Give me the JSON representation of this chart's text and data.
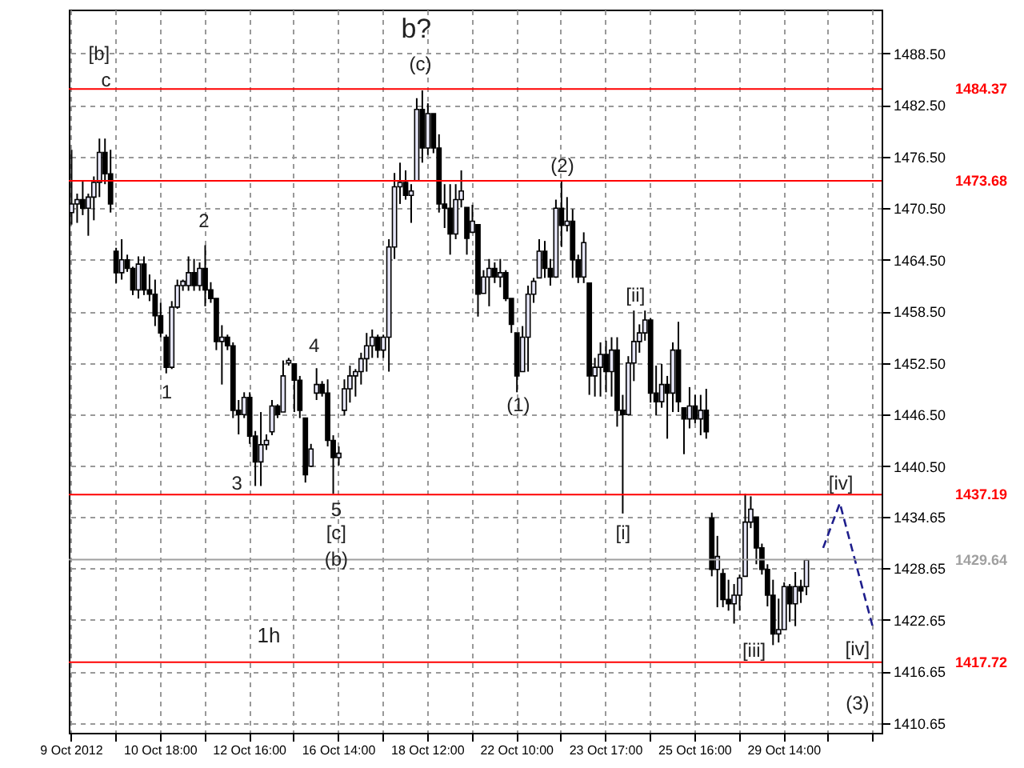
{
  "chart_data": {
    "type": "candlestick",
    "color": "#000000",
    "grid": true,
    "categories": [
      "9 Oct 2012",
      null,
      null,
      null,
      null,
      null,
      null,
      null,
      null,
      null,
      null,
      null,
      null,
      null,
      null,
      null,
      "10 Oct 18:00",
      null,
      null,
      null,
      null,
      null,
      null,
      null,
      null,
      null,
      null,
      null,
      null,
      null,
      null,
      null,
      "12 Oct 16:00",
      null,
      null,
      null,
      null,
      null,
      null,
      null,
      null,
      null,
      null,
      null,
      null,
      null,
      null,
      null,
      "16 Oct 14:00",
      null,
      null,
      null,
      null,
      null,
      null,
      null,
      null,
      null,
      null,
      null,
      null,
      null,
      null,
      null,
      "18 Oct 12:00",
      null,
      null,
      null,
      null,
      null,
      null,
      null,
      null,
      null,
      null,
      null,
      null,
      null,
      null,
      null,
      "22 Oct 10:00",
      null,
      null,
      null,
      null,
      null,
      null,
      null,
      null,
      null,
      null,
      null,
      null,
      null,
      null,
      null,
      "23 Oct 17:00",
      null,
      null,
      null,
      null,
      null,
      null,
      null,
      null,
      null,
      null,
      null,
      null,
      null,
      null,
      null,
      "25 Oct 16:00",
      null,
      null,
      null,
      null,
      null,
      null,
      null,
      null,
      null,
      null,
      null,
      null,
      null,
      null,
      null,
      "29 Oct 14:00",
      null,
      null,
      null,
      null,
      null,
      null,
      null,
      null,
      null,
      null,
      null,
      null,
      null,
      null,
      null,
      null,
      null
    ],
    "ohlc": [
      [
        1470.0,
        1477.3,
        1468.6,
        1471.0
      ],
      [
        1471.0,
        1472.2,
        1468.8,
        1471.5
      ],
      [
        1471.5,
        1473.7,
        1469.7,
        1470.5
      ],
      [
        1470.5,
        1472.2,
        1467.3,
        1471.8
      ],
      [
        1471.8,
        1474.2,
        1469.1,
        1473.5
      ],
      [
        1473.5,
        1478.6,
        1471.8,
        1477.0
      ],
      [
        1477.0,
        1478.6,
        1473.3,
        1474.5
      ],
      [
        1474.5,
        1477.3,
        1470.0,
        1471.0
      ],
      [
        1465.5,
        1465.9,
        1461.8,
        1463.0
      ],
      [
        1463.0,
        1466.9,
        1462.2,
        1464.5
      ],
      [
        1464.5,
        1465.1,
        1463.1,
        1463.5
      ],
      [
        1463.5,
        1463.7,
        1460.4,
        1461.0
      ],
      [
        1461.0,
        1464.9,
        1460.0,
        1464.0
      ],
      [
        1464.0,
        1464.9,
        1460.4,
        1461.0
      ],
      [
        1461.0,
        1462.8,
        1459.7,
        1460.5
      ],
      [
        1460.5,
        1462.2,
        1456.8,
        1458.0
      ],
      [
        1458.0,
        1459.5,
        1455.5,
        1456.0
      ],
      [
        1455.5,
        1455.8,
        1451.3,
        1452.0
      ],
      [
        1452.0,
        1459.7,
        1451.8,
        1459.0
      ],
      [
        1459.0,
        1462.2,
        1458.8,
        1461.5
      ],
      [
        1461.5,
        1462.2,
        1460.9,
        1462.0
      ],
      [
        1461.5,
        1464.9,
        1460.9,
        1463.0
      ],
      [
        1463.0,
        1464.6,
        1460.9,
        1461.5
      ],
      [
        1461.5,
        1464.2,
        1460.9,
        1463.5
      ],
      [
        1463.5,
        1466.2,
        1459.1,
        1461.0
      ],
      [
        1461.0,
        1461.9,
        1459.5,
        1460.0
      ],
      [
        1460.0,
        1460.0,
        1454.0,
        1455.0
      ],
      [
        1455.0,
        1456.9,
        1450.0,
        1455.5
      ],
      [
        1455.5,
        1455.8,
        1454.0,
        1454.5
      ],
      [
        1454.5,
        1454.9,
        1446.1,
        1447.0
      ],
      [
        1447.0,
        1448.2,
        1444.2,
        1446.5
      ],
      [
        1446.5,
        1449.1,
        1446.1,
        1448.5
      ],
      [
        1448.5,
        1449.1,
        1443.1,
        1444.0
      ],
      [
        1444.0,
        1444.6,
        1438.2,
        1441.0
      ],
      [
        1441.0,
        1446.8,
        1438.2,
        1443.0
      ],
      [
        1443.0,
        1444.2,
        1442.4,
        1443.5
      ],
      [
        1444.5,
        1448.2,
        1444.1,
        1447.5
      ],
      [
        1447.5,
        1447.7,
        1446.1,
        1446.5
      ],
      [
        1446.8,
        1452.8,
        1446.8,
        1451.0
      ],
      [
        1452.5,
        1453.1,
        1452.2,
        1452.8
      ],
      [
        1452.4,
        1452.4,
        1446.8,
        1450.5
      ],
      [
        1450.5,
        1451.0,
        1446.1,
        1447.0
      ],
      [
        1446.1,
        1446.1,
        1438.6,
        1439.5
      ],
      [
        1440.5,
        1443.1,
        1440.4,
        1442.5
      ],
      [
        1449.0,
        1451.9,
        1448.2,
        1450.0
      ],
      [
        1450.0,
        1450.4,
        1448.6,
        1449.0
      ],
      [
        1449.0,
        1450.6,
        1442.8,
        1443.5
      ],
      [
        1443.5,
        1444.1,
        1437.3,
        1441.5
      ],
      [
        1441.5,
        1442.8,
        1440.6,
        1442.0
      ],
      [
        1447.0,
        1450.6,
        1446.4,
        1449.5
      ],
      [
        1449.5,
        1452.2,
        1447.9,
        1451.0
      ],
      [
        1451.0,
        1451.8,
        1448.6,
        1451.5
      ],
      [
        1451.5,
        1453.7,
        1450.0,
        1453.0
      ],
      [
        1453.0,
        1456.0,
        1451.5,
        1454.5
      ],
      [
        1454.5,
        1456.4,
        1453.1,
        1455.5
      ],
      [
        1455.5,
        1455.8,
        1453.1,
        1454.0
      ],
      [
        1454.0,
        1455.8,
        1453.1,
        1455.5
      ],
      [
        1455.5,
        1466.9,
        1451.5,
        1466.0
      ],
      [
        1466.0,
        1474.6,
        1464.6,
        1473.0
      ],
      [
        1473.0,
        1475.8,
        1471.0,
        1473.5
      ],
      [
        1473.5,
        1474.9,
        1471.5,
        1472.0
      ],
      [
        1472.0,
        1473.3,
        1468.8,
        1472.5
      ],
      [
        1473.7,
        1483.3,
        1473.7,
        1482.0
      ],
      [
        1482.0,
        1484.2,
        1475.8,
        1477.5
      ],
      [
        1477.5,
        1482.7,
        1476.7,
        1481.5
      ],
      [
        1481.5,
        1481.5,
        1476.9,
        1477.5
      ],
      [
        1477.5,
        1479.1,
        1470.0,
        1471.0
      ],
      [
        1471.0,
        1473.3,
        1468.2,
        1470.5
      ],
      [
        1470.5,
        1473.3,
        1465.1,
        1467.5
      ],
      [
        1467.5,
        1473.3,
        1466.9,
        1471.5
      ],
      [
        1471.5,
        1474.9,
        1470.6,
        1472.5
      ],
      [
        1470.6,
        1470.6,
        1465.1,
        1467.0
      ],
      [
        1467.7,
        1470.9,
        1467.7,
        1469.0
      ],
      [
        1468.6,
        1468.6,
        1457.9,
        1460.5
      ],
      [
        1460.6,
        1463.3,
        1460.6,
        1462.5
      ],
      [
        1462.5,
        1464.6,
        1459.1,
        1463.5
      ],
      [
        1463.5,
        1464.2,
        1461.8,
        1462.5
      ],
      [
        1462.5,
        1464.6,
        1461.3,
        1463.0
      ],
      [
        1463.0,
        1463.3,
        1459.7,
        1460.0
      ],
      [
        1460.0,
        1460.0,
        1456.0,
        1457.0
      ],
      [
        1456.0,
        1456.0,
        1449.1,
        1451.0
      ],
      [
        1451.5,
        1456.8,
        1451.5,
        1455.5
      ],
      [
        1455.5,
        1461.5,
        1451.5,
        1460.5
      ],
      [
        1460.5,
        1462.4,
        1459.5,
        1462.0
      ],
      [
        1462.4,
        1466.9,
        1462.4,
        1465.5
      ],
      [
        1465.5,
        1466.7,
        1462.4,
        1463.5
      ],
      [
        1463.5,
        1464.6,
        1461.5,
        1462.5
      ],
      [
        1462.5,
        1471.5,
        1462.4,
        1470.5
      ],
      [
        1470.5,
        1473.7,
        1466.0,
        1468.5
      ],
      [
        1468.5,
        1471.8,
        1467.8,
        1469.0
      ],
      [
        1469.0,
        1470.4,
        1462.4,
        1464.5
      ],
      [
        1464.5,
        1465.1,
        1461.8,
        1462.5
      ],
      [
        1462.5,
        1467.7,
        1461.8,
        1466.5
      ],
      [
        1461.8,
        1461.8,
        1448.8,
        1451.0
      ],
      [
        1451.0,
        1453.1,
        1448.6,
        1452.0
      ],
      [
        1452.0,
        1454.9,
        1448.6,
        1453.5
      ],
      [
        1453.5,
        1455.1,
        1449.1,
        1451.5
      ],
      [
        1451.5,
        1455.5,
        1448.6,
        1454.0
      ],
      [
        1454.0,
        1455.5,
        1445.1,
        1447.0
      ],
      [
        1447.0,
        1448.8,
        1435.0,
        1446.5
      ],
      [
        1446.5,
        1453.3,
        1446.4,
        1452.5
      ],
      [
        1452.5,
        1458.6,
        1450.4,
        1455.0
      ],
      [
        1455.0,
        1457.0,
        1453.7,
        1456.0
      ],
      [
        1456.0,
        1458.6,
        1455.1,
        1457.5
      ],
      [
        1457.5,
        1457.7,
        1447.9,
        1449.0
      ],
      [
        1449.0,
        1452.2,
        1446.4,
        1448.0
      ],
      [
        1448.0,
        1452.4,
        1447.3,
        1450.0
      ],
      [
        1450.0,
        1451.0,
        1443.7,
        1449.0
      ],
      [
        1449.0,
        1454.9,
        1446.8,
        1454.0
      ],
      [
        1454.0,
        1457.3,
        1446.8,
        1448.0
      ],
      [
        1447.3,
        1447.3,
        1441.9,
        1446.0
      ],
      [
        1446.0,
        1449.7,
        1444.9,
        1447.5
      ],
      [
        1447.5,
        1448.8,
        1445.5,
        1446.0
      ],
      [
        1446.0,
        1448.8,
        1444.1,
        1447.0
      ],
      [
        1447.0,
        1449.5,
        1443.7,
        1444.5
      ],
      [
        1434.5,
        1435.1,
        1427.7,
        1428.5
      ],
      [
        1428.5,
        1432.4,
        1424.1,
        1430.0
      ],
      [
        1428.0,
        1428.6,
        1424.1,
        1425.0
      ],
      [
        1425.0,
        1427.3,
        1423.7,
        1424.5
      ],
      [
        1424.5,
        1426.8,
        1422.2,
        1425.5
      ],
      [
        1425.5,
        1427.9,
        1423.7,
        1427.5
      ],
      [
        1427.7,
        1437.3,
        1427.7,
        1434.0
      ],
      [
        1434.0,
        1437.0,
        1433.3,
        1435.5
      ],
      [
        1434.6,
        1434.6,
        1429.1,
        1431.0
      ],
      [
        1431.0,
        1431.5,
        1427.9,
        1428.5
      ],
      [
        1428.5,
        1429.1,
        1424.2,
        1425.5
      ],
      [
        1425.5,
        1427.3,
        1419.7,
        1421.0
      ],
      [
        1421.0,
        1425.1,
        1420.0,
        1421.5
      ],
      [
        1421.5,
        1427.0,
        1421.5,
        1426.5
      ],
      [
        1426.5,
        1426.8,
        1422.4,
        1424.5
      ],
      [
        1424.5,
        1428.2,
        1421.9,
        1426.5
      ],
      [
        1426.5,
        1427.3,
        1424.6,
        1426.0
      ],
      [
        1426.5,
        1429.7,
        1425.5,
        1429.6
      ],
      null,
      null,
      null,
      null,
      null,
      null,
      null,
      null,
      null,
      null,
      null,
      null,
      null
    ],
    "series": [
      {
        "type": "line",
        "color": "#1e1e8c",
        "line_style": "dashed",
        "values": [
          null,
          null,
          null,
          null,
          null,
          null,
          null,
          null,
          null,
          null,
          null,
          null,
          null,
          null,
          null,
          null,
          null,
          null,
          null,
          null,
          null,
          null,
          null,
          null,
          null,
          null,
          null,
          null,
          null,
          null,
          null,
          null,
          null,
          null,
          null,
          null,
          null,
          null,
          null,
          null,
          null,
          null,
          null,
          null,
          null,
          null,
          null,
          null,
          null,
          null,
          null,
          null,
          null,
          null,
          null,
          null,
          null,
          null,
          null,
          null,
          null,
          null,
          null,
          null,
          null,
          null,
          null,
          null,
          null,
          null,
          null,
          null,
          null,
          null,
          null,
          null,
          null,
          null,
          null,
          null,
          null,
          null,
          null,
          null,
          null,
          null,
          null,
          null,
          null,
          null,
          null,
          null,
          null,
          null,
          null,
          null,
          null,
          null,
          null,
          null,
          null,
          null,
          null,
          null,
          null,
          null,
          null,
          null,
          null,
          null,
          null,
          null,
          null,
          null,
          null,
          null,
          null,
          null,
          null,
          null,
          null,
          null,
          null,
          null,
          null,
          null,
          null,
          null,
          null,
          null,
          null,
          null,
          null,
          null,
          null,
          1431.0,
          null,
          null,
          1436.2,
          null,
          null,
          null,
          null,
          null,
          1421.6,
          null
        ]
      }
    ],
    "ylim": [
      1409.5,
      1493.6
    ],
    "yticks": [
      1410.65,
      1416.65,
      1422.65,
      1428.65,
      1434.65,
      {
        "value": 1440.5,
        "label": "1440.50"
      },
      {
        "value": 1446.5,
        "label": "1446.50"
      },
      {
        "value": 1452.5,
        "label": "1452.50"
      },
      {
        "value": 1458.5,
        "label": "1458.50"
      },
      {
        "value": 1464.5,
        "label": "1464.50"
      },
      {
        "value": 1470.5,
        "label": "1470.50"
      },
      {
        "value": 1476.5,
        "label": "1476.50"
      },
      {
        "value": 1482.5,
        "label": "1482.50"
      },
      {
        "value": 1488.5,
        "label": "1488.50"
      }
    ],
    "ref_lines": [
      {
        "axis": "y",
        "value": 1484.37,
        "label": "1484.37",
        "color": "#ff0000"
      },
      {
        "axis": "y",
        "value": 1473.68,
        "label": "1473.68",
        "color": "#ff0000"
      },
      {
        "axis": "y",
        "value": 1437.19,
        "label": "1437.19",
        "color": "#ff0000"
      },
      {
        "axis": "y",
        "value": 1429.64,
        "label": "1429.64",
        "color": "#a0a0a0"
      },
      {
        "axis": "y",
        "value": 1417.72,
        "label": "1417.72",
        "color": "#ff0000"
      }
    ],
    "annotations": [
      "b?",
      "(c)",
      "[b]",
      "c",
      "2",
      "1",
      "3",
      "4",
      "5",
      "[c]",
      "(b)",
      "(1)",
      "(2)",
      "[ii]",
      "[i]",
      "[iii]",
      "[iv]",
      "[iv]",
      "(3)",
      "1h"
    ]
  }
}
